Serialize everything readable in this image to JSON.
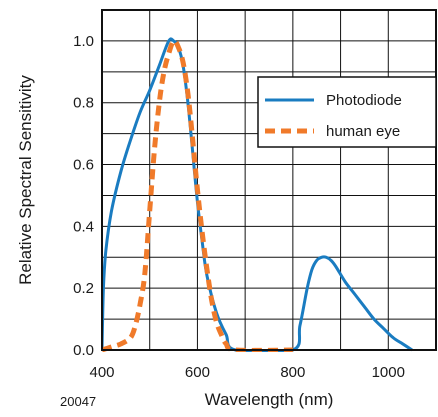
{
  "chart_data": {
    "type": "line",
    "title": "",
    "xlabel": "Wavelength (nm)",
    "ylabel": "Relative Spectral Sensitivity",
    "xlim": [
      400,
      1100
    ],
    "ylim": [
      0,
      1.1
    ],
    "grid": true,
    "legend_position": "top-right",
    "figure_code": "20047",
    "x_ticks": [
      {
        "value": 400,
        "label": "400"
      },
      {
        "value": 600,
        "label": "600"
      },
      {
        "value": 800,
        "label": "800"
      },
      {
        "value": 1000,
        "label": "1000"
      }
    ],
    "y_ticks": [
      {
        "value": 0,
        "label": "0.0"
      },
      {
        "value": 0.2,
        "label": "0.2"
      },
      {
        "value": 0.4,
        "label": "0.4"
      },
      {
        "value": 0.6,
        "label": "0.6"
      },
      {
        "value": 0.8,
        "label": "0.8"
      },
      {
        "value": 1.0,
        "label": "1.0"
      }
    ],
    "series": [
      {
        "name": "Photodiode",
        "color": "#1a7cc1",
        "style": "solid",
        "points": [
          [
            400,
            0.0
          ],
          [
            403,
            0.2
          ],
          [
            408,
            0.32
          ],
          [
            420,
            0.45
          ],
          [
            440,
            0.58
          ],
          [
            460,
            0.68
          ],
          [
            480,
            0.77
          ],
          [
            500,
            0.84
          ],
          [
            520,
            0.92
          ],
          [
            540,
            1.0
          ],
          [
            550,
            1.0
          ],
          [
            560,
            0.98
          ],
          [
            570,
            0.92
          ],
          [
            580,
            0.8
          ],
          [
            590,
            0.64
          ],
          [
            600,
            0.48
          ],
          [
            610,
            0.35
          ],
          [
            620,
            0.24
          ],
          [
            640,
            0.12
          ],
          [
            660,
            0.05
          ],
          [
            680,
            0.0
          ],
          [
            800,
            0.0
          ],
          [
            815,
            0.08
          ],
          [
            830,
            0.2
          ],
          [
            840,
            0.26
          ],
          [
            850,
            0.29
          ],
          [
            860,
            0.3
          ],
          [
            870,
            0.3
          ],
          [
            880,
            0.29
          ],
          [
            890,
            0.27
          ],
          [
            910,
            0.22
          ],
          [
            930,
            0.18
          ],
          [
            950,
            0.14
          ],
          [
            970,
            0.1
          ],
          [
            990,
            0.07
          ],
          [
            1010,
            0.04
          ],
          [
            1030,
            0.02
          ],
          [
            1050,
            0.0
          ]
        ]
      },
      {
        "name": "human eye",
        "color": "#f07a2a",
        "style": "dashed",
        "points": [
          [
            400,
            0.0
          ],
          [
            420,
            0.01
          ],
          [
            440,
            0.02
          ],
          [
            460,
            0.04
          ],
          [
            470,
            0.08
          ],
          [
            480,
            0.15
          ],
          [
            490,
            0.25
          ],
          [
            500,
            0.45
          ],
          [
            510,
            0.65
          ],
          [
            520,
            0.8
          ],
          [
            530,
            0.9
          ],
          [
            540,
            0.96
          ],
          [
            550,
            1.0
          ],
          [
            560,
            0.98
          ],
          [
            570,
            0.93
          ],
          [
            580,
            0.83
          ],
          [
            590,
            0.68
          ],
          [
            600,
            0.52
          ],
          [
            610,
            0.38
          ],
          [
            620,
            0.26
          ],
          [
            630,
            0.16
          ],
          [
            640,
            0.09
          ],
          [
            650,
            0.05
          ],
          [
            660,
            0.02
          ],
          [
            680,
            0.0
          ],
          [
            800,
            0.0
          ]
        ]
      }
    ]
  }
}
